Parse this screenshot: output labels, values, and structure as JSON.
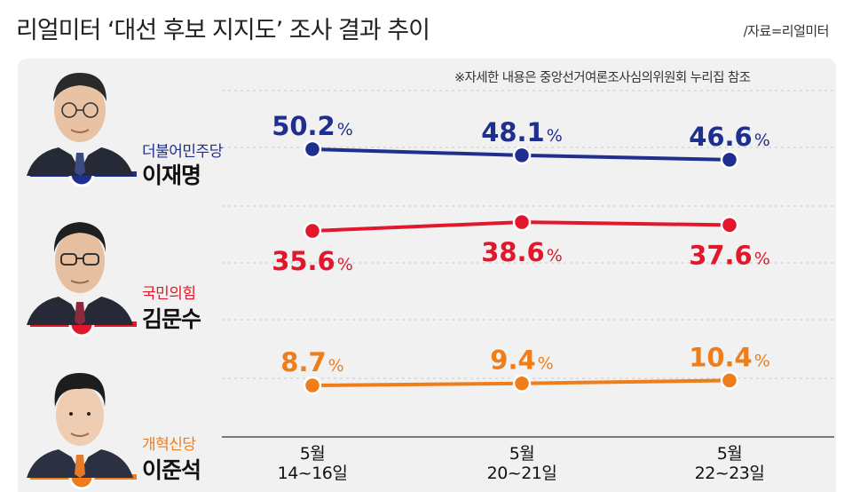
{
  "header": {
    "title": "리얼미터 ‘대선 후보 지지도’ 조사 결과 추이",
    "source": "/자료=리얼미터",
    "note": "※자세한 내용은 중앙선거여론조사심의위원회 누리집 참조"
  },
  "candidates": [
    {
      "party": "더불어민주당",
      "name": "이재명",
      "color": "#1e2f8f"
    },
    {
      "party": "국민의힘",
      "name": "김문수",
      "color": "#e2172c"
    },
    {
      "party": "개혁신당",
      "name": "이준석",
      "color": "#ef7d1a"
    }
  ],
  "chart_data": {
    "type": "line",
    "categories": [
      {
        "month": "5월",
        "days": "14~16일"
      },
      {
        "month": "5월",
        "days": "20~21일"
      },
      {
        "month": "5월",
        "days": "22~23일"
      }
    ],
    "unit": "%",
    "series": [
      {
        "name": "이재명",
        "color": "#1e2f8f",
        "values": [
          50.2,
          48.1,
          46.6
        ],
        "labels": [
          "50.2",
          "48.1",
          "46.6"
        ]
      },
      {
        "name": "김문수",
        "color": "#e2172c",
        "values": [
          35.6,
          38.6,
          37.6
        ],
        "labels": [
          "35.6",
          "38.6",
          "37.6"
        ]
      },
      {
        "name": "이준석",
        "color": "#ef7d1a",
        "values": [
          8.7,
          9.4,
          10.4
        ],
        "labels": [
          "8.7",
          "9.4",
          "10.4"
        ]
      }
    ],
    "grid": true
  }
}
